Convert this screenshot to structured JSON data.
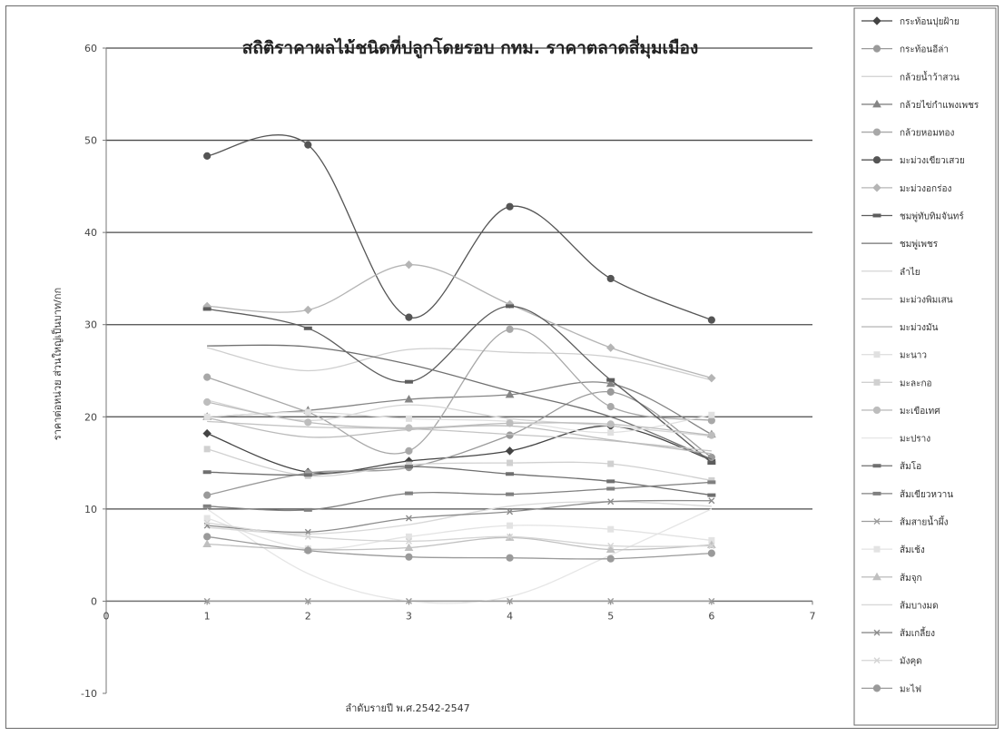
{
  "chart_data": {
    "type": "line",
    "title": "สถิติราคาผลไม้ชนิดที่ปลูกโดยรอบ กทม. ราคาตลาดสี่มุมเมือง",
    "xlabel": "ลำดับรายปี พ.ศ.2542-2547",
    "ylabel": "ราคาต่อหน่วย ส่วนใหญ่เป็นบาท/กก",
    "xlim": [
      0,
      7
    ],
    "ylim": [
      -10,
      60
    ],
    "x_ticks": [
      "0",
      "1",
      "2",
      "3",
      "4",
      "5",
      "6",
      "7"
    ],
    "y_ticks": [
      "-10",
      "0",
      "10",
      "20",
      "30",
      "40",
      "50",
      "60"
    ],
    "grid": "horizontal major gridlines",
    "legend_position": "right",
    "x": [
      1,
      2,
      3,
      4,
      5,
      6
    ],
    "series": [
      {
        "name": "กระท้อนปุยฝ้าย",
        "color": "#444444",
        "marker": "diamond",
        "values": [
          18.2,
          14.0,
          15.2,
          16.3,
          19.0,
          15.3
        ]
      },
      {
        "name": "กระท้อนอีล่า",
        "color": "#9a9a9a",
        "marker": "circle",
        "values": [
          11.5,
          13.9,
          14.5,
          18.0,
          22.7,
          15.6
        ]
      },
      {
        "name": "กล้วยน้ำว้าสวน",
        "color": "#cfcfcf",
        "marker": "none",
        "values": [
          27.5,
          25.0,
          27.3,
          27.0,
          26.5,
          24.0
        ]
      },
      {
        "name": "กล้วยไข่กำแพงเพชร",
        "color": "#858585",
        "marker": "triangle",
        "values": [
          20.0,
          20.7,
          21.9,
          22.4,
          23.6,
          18.1
        ]
      },
      {
        "name": "กล้วยหอมทอง",
        "color": "#a8a8a8",
        "marker": "circle",
        "values": [
          24.3,
          20.5,
          16.3,
          29.5,
          21.1,
          19.6
        ]
      },
      {
        "name": "มะม่วงเขียวเสวย",
        "color": "#555555",
        "marker": "circle",
        "values": [
          48.3,
          49.5,
          30.8,
          42.8,
          35.0,
          30.5
        ]
      },
      {
        "name": "มะม่วงอกร่อง",
        "color": "#b5b5b5",
        "marker": "diamond",
        "values": [
          32.0,
          31.6,
          36.5,
          32.2,
          27.5,
          24.2
        ]
      },
      {
        "name": "ชมพู่ทับทิมจันทร์",
        "color": "#5d5d5d",
        "marker": "dash",
        "values": [
          31.7,
          29.6,
          23.8,
          32.0,
          24.0,
          15.0
        ]
      },
      {
        "name": "ชมพู่เพชร",
        "color": "#707070",
        "marker": "none",
        "values": [
          27.7,
          27.6,
          25.7,
          22.8,
          20.0,
          15.4
        ]
      },
      {
        "name": "ลำไย",
        "color": "#d5d5d5",
        "marker": "none",
        "values": [
          21.8,
          19.6,
          21.3,
          19.8,
          19.0,
          17.9
        ]
      },
      {
        "name": "มะม่วงพิมเสน",
        "color": "#c4c4c4",
        "marker": "none",
        "values": [
          19.5,
          18.9,
          18.7,
          18.1,
          17.4,
          16.3
        ]
      },
      {
        "name": "มะม่วงมัน",
        "color": "#bbbbbb",
        "marker": "none",
        "values": [
          19.9,
          17.8,
          18.6,
          19.0,
          17.5,
          16.0
        ]
      },
      {
        "name": "มะนาว",
        "color": "#e0e0e0",
        "marker": "square",
        "values": [
          20.0,
          20.5,
          19.8,
          19.5,
          18.3,
          20.2
        ]
      },
      {
        "name": "มะละกอ",
        "color": "#d0d0d0",
        "marker": "square",
        "values": [
          16.5,
          13.6,
          14.8,
          15.0,
          14.9,
          13.1
        ]
      },
      {
        "name": "มะเขือเทศ",
        "color": "#bdbdbd",
        "marker": "circle",
        "values": [
          21.6,
          19.4,
          18.8,
          19.3,
          19.2,
          18.0
        ]
      },
      {
        "name": "มะปราง",
        "color": "#e6e6e6",
        "marker": "none",
        "values": [
          10.0,
          3.0,
          0.0,
          0.5,
          5.0,
          10.0
        ]
      },
      {
        "name": "ส้มโอ",
        "color": "#6f6f6f",
        "marker": "dash",
        "values": [
          14.0,
          13.7,
          14.6,
          13.8,
          13.0,
          11.5
        ]
      },
      {
        "name": "ส้มเขียวหวาน",
        "color": "#808080",
        "marker": "dash",
        "values": [
          10.3,
          9.9,
          11.7,
          11.6,
          12.2,
          12.9
        ]
      },
      {
        "name": "ส้มสายน้ำผึ้ง",
        "color": "#9c9c9c",
        "marker": "star",
        "values": [
          0.0,
          0.0,
          0.0,
          0.0,
          0.0,
          0.0
        ]
      },
      {
        "name": "ส้มเช้ง",
        "color": "#e3e3e3",
        "marker": "square",
        "values": [
          9.0,
          5.7,
          7.0,
          8.2,
          7.8,
          6.6
        ]
      },
      {
        "name": "ส้มจุก",
        "color": "#c0c0c0",
        "marker": "triangle",
        "values": [
          6.2,
          5.6,
          5.8,
          6.9,
          5.6,
          6.1
        ]
      },
      {
        "name": "ส้มบางมด",
        "color": "#d8d8d8",
        "marker": "none",
        "values": [
          8.0,
          7.3,
          8.3,
          10.3,
          10.8,
          10.3
        ]
      },
      {
        "name": "ส้มเกลี้ยง",
        "color": "#8c8c8c",
        "marker": "star",
        "values": [
          8.2,
          7.5,
          9.0,
          9.7,
          10.8,
          10.9
        ]
      },
      {
        "name": "มังคุด",
        "color": "#d4d4d4",
        "marker": "star",
        "values": [
          8.5,
          7.0,
          6.5,
          7.0,
          6.0,
          6.0
        ]
      },
      {
        "name": "มะไฟ",
        "color": "#9a9a9a",
        "marker": "circle",
        "values": [
          7.0,
          5.5,
          4.8,
          4.7,
          4.6,
          5.2
        ]
      }
    ]
  }
}
